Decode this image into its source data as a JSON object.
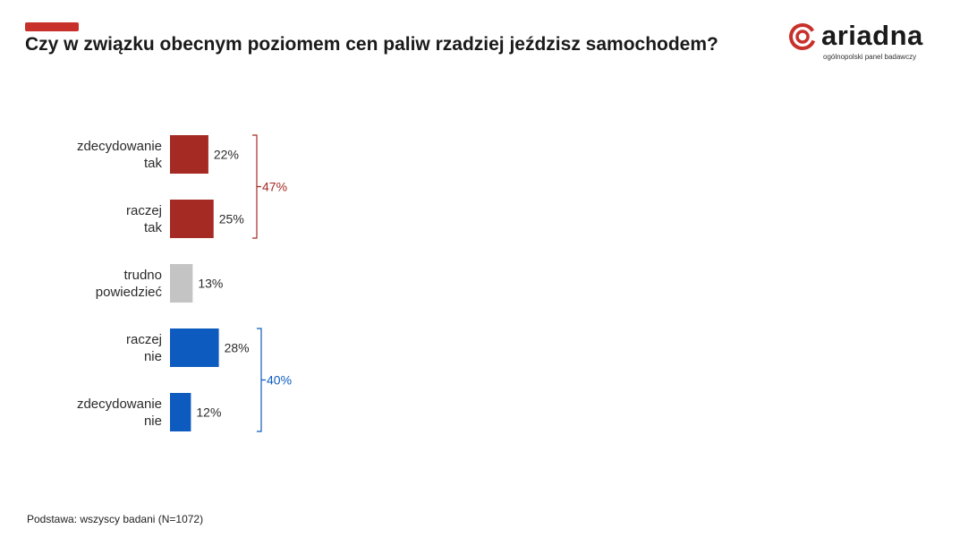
{
  "header": {
    "title": "Czy w związku obecnym poziomem cen paliw rzadziej jeździsz samochodem?"
  },
  "logo": {
    "name": "ariadna",
    "tagline": "ogólnopolski panel badawczy"
  },
  "colors": {
    "accent": "#c8312b",
    "yes": "#a52a23",
    "neutral": "#c4c4c4",
    "no": "#0d5bbf"
  },
  "chart_data": {
    "type": "bar",
    "orientation": "horizontal",
    "categories": [
      [
        "zdecydowanie",
        "tak"
      ],
      [
        "raczej",
        "tak"
      ],
      [
        "trudno",
        "powiedzieć"
      ],
      [
        "raczej",
        "nie"
      ],
      [
        "zdecydowanie",
        "nie"
      ]
    ],
    "values": [
      22,
      25,
      13,
      28,
      12
    ],
    "value_labels": [
      "22%",
      "25%",
      "13%",
      "28%",
      "12%"
    ],
    "bar_colors": [
      "yes",
      "yes",
      "neutral",
      "no",
      "no"
    ],
    "groups": [
      {
        "label": "47%",
        "from": 0,
        "to": 1,
        "color": "yes"
      },
      {
        "label": "40%",
        "from": 3,
        "to": 4,
        "color": "no"
      }
    ],
    "unit": "%",
    "grid": false,
    "legend": "none"
  },
  "footer": {
    "base": "Podstawa: wszyscy badani (N=1072)"
  }
}
